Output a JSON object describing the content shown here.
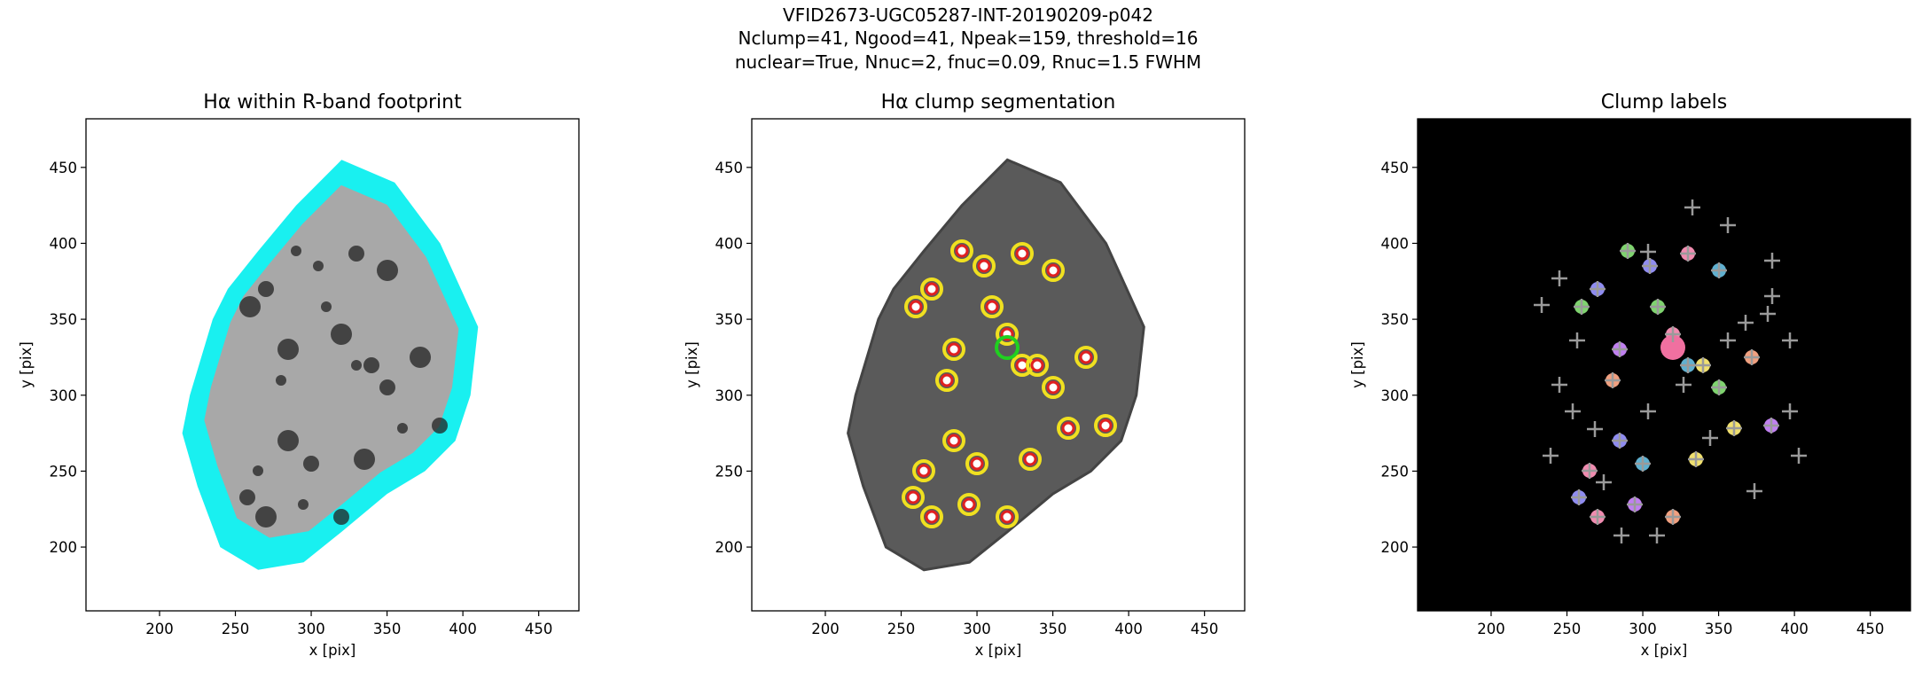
{
  "figure_title": [
    "VFID2673-UGC05287-INT-20190209-p042",
    "Nclump=41, Ngood=41, Npeak=159, threshold=16",
    "nuclear=True, Nnuc=2, fnuc=0.09, Rnuc=1.5 FWHM"
  ],
  "chart_data": [
    {
      "type": "image",
      "title": "Hα within R-band footprint",
      "xlabel": "x [pix]",
      "ylabel": "y [pix]",
      "xlim": [
        151.5,
        476.5
      ],
      "ylim": [
        158,
        482
      ],
      "xticks": [
        200,
        250,
        300,
        350,
        400,
        450
      ],
      "yticks": [
        200,
        250,
        300,
        350,
        400,
        450
      ]
    },
    {
      "type": "image",
      "title": "Hα clump segmentation",
      "xlabel": "x [pix]",
      "ylabel": "y [pix]",
      "xlim": [
        151.5,
        476.5
      ],
      "ylim": [
        158,
        482
      ],
      "xticks": [
        200,
        250,
        300,
        350,
        400,
        450
      ],
      "yticks": [
        200,
        250,
        300,
        350,
        400,
        450
      ]
    },
    {
      "type": "image",
      "title": "Clump labels",
      "xlabel": "x [pix]",
      "ylabel": "y [pix]",
      "xlim": [
        151.5,
        476.5
      ],
      "ylim": [
        158,
        482
      ],
      "xticks": [
        200,
        250,
        300,
        350,
        400,
        450
      ],
      "yticks": [
        200,
        250,
        300,
        350,
        400,
        450
      ]
    }
  ]
}
